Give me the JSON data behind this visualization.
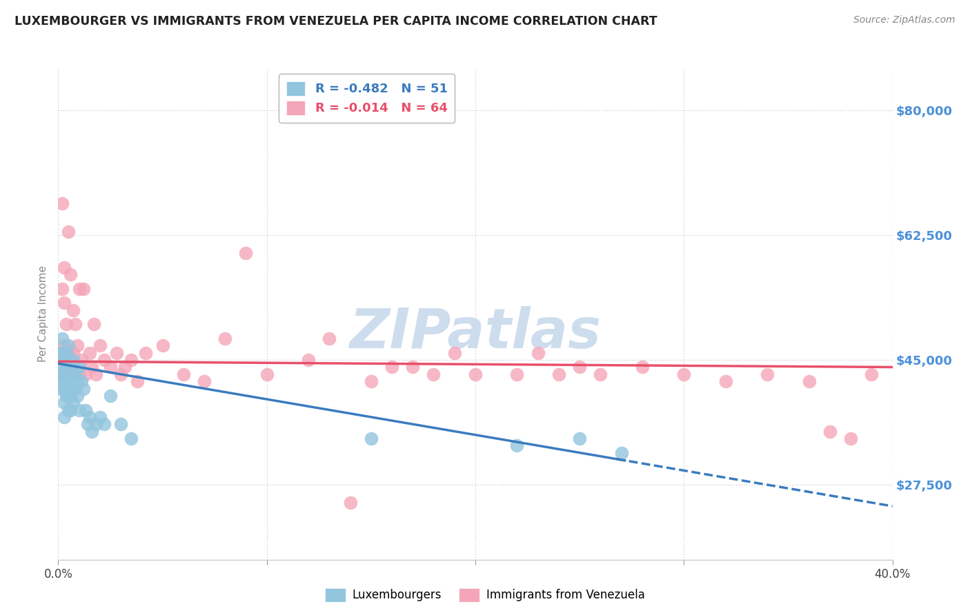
{
  "title": "LUXEMBOURGER VS IMMIGRANTS FROM VENEZUELA PER CAPITA INCOME CORRELATION CHART",
  "source": "Source: ZipAtlas.com",
  "ylabel": "Per Capita Income",
  "y_ticks": [
    27500,
    45000,
    62500,
    80000
  ],
  "y_tick_labels": [
    "$27,500",
    "$45,000",
    "$62,500",
    "$80,000"
  ],
  "x_min": 0.0,
  "x_max": 0.4,
  "y_min": 17000,
  "y_max": 86000,
  "blue_R": "-0.482",
  "blue_N": "51",
  "pink_R": "-0.014",
  "pink_N": "64",
  "blue_color": "#92c5de",
  "pink_color": "#f4a6b8",
  "blue_line_color": "#3a7bbf",
  "pink_line_color": "#e8506a",
  "watermark": "ZIPatlas",
  "watermark_color": "#c5d8ea",
  "background_color": "#ffffff",
  "legend_edge_color": "#bbbbbb",
  "blue_x": [
    0.001,
    0.001,
    0.001,
    0.002,
    0.002,
    0.002,
    0.002,
    0.003,
    0.003,
    0.003,
    0.003,
    0.003,
    0.004,
    0.004,
    0.004,
    0.004,
    0.005,
    0.005,
    0.005,
    0.005,
    0.005,
    0.006,
    0.006,
    0.006,
    0.006,
    0.007,
    0.007,
    0.007,
    0.007,
    0.008,
    0.008,
    0.009,
    0.009,
    0.01,
    0.01,
    0.011,
    0.012,
    0.013,
    0.014,
    0.015,
    0.016,
    0.018,
    0.02,
    0.022,
    0.025,
    0.03,
    0.035,
    0.15,
    0.22,
    0.25,
    0.27
  ],
  "blue_y": [
    46000,
    43000,
    41000,
    48000,
    46000,
    44000,
    42000,
    45000,
    43000,
    41000,
    39000,
    37000,
    46000,
    44000,
    42000,
    40000,
    47000,
    45000,
    42000,
    40000,
    38000,
    44000,
    42000,
    40000,
    38000,
    45000,
    43000,
    41000,
    39000,
    43000,
    41000,
    42000,
    40000,
    44000,
    38000,
    42000,
    41000,
    38000,
    36000,
    37000,
    35000,
    36000,
    37000,
    36000,
    40000,
    36000,
    34000,
    34000,
    33000,
    34000,
    32000
  ],
  "pink_x": [
    0.001,
    0.001,
    0.002,
    0.002,
    0.003,
    0.003,
    0.003,
    0.004,
    0.004,
    0.005,
    0.005,
    0.006,
    0.006,
    0.007,
    0.007,
    0.008,
    0.008,
    0.009,
    0.01,
    0.01,
    0.011,
    0.012,
    0.013,
    0.015,
    0.016,
    0.017,
    0.018,
    0.02,
    0.022,
    0.025,
    0.028,
    0.03,
    0.032,
    0.035,
    0.038,
    0.042,
    0.08,
    0.09,
    0.1,
    0.12,
    0.13,
    0.15,
    0.17,
    0.18,
    0.19,
    0.2,
    0.22,
    0.23,
    0.24,
    0.25,
    0.26,
    0.28,
    0.3,
    0.32,
    0.34,
    0.36,
    0.37,
    0.38,
    0.39,
    0.16,
    0.05,
    0.06,
    0.07,
    0.14
  ],
  "pink_y": [
    46000,
    43000,
    67000,
    55000,
    58000,
    53000,
    47000,
    50000,
    44000,
    63000,
    46000,
    57000,
    43000,
    52000,
    46000,
    50000,
    43000,
    47000,
    55000,
    43000,
    45000,
    55000,
    43000,
    46000,
    44000,
    50000,
    43000,
    47000,
    45000,
    44000,
    46000,
    43000,
    44000,
    45000,
    42000,
    46000,
    48000,
    60000,
    43000,
    45000,
    48000,
    42000,
    44000,
    43000,
    46000,
    43000,
    43000,
    46000,
    43000,
    44000,
    43000,
    44000,
    43000,
    42000,
    43000,
    42000,
    35000,
    34000,
    43000,
    44000,
    47000,
    43000,
    42000,
    25000
  ]
}
